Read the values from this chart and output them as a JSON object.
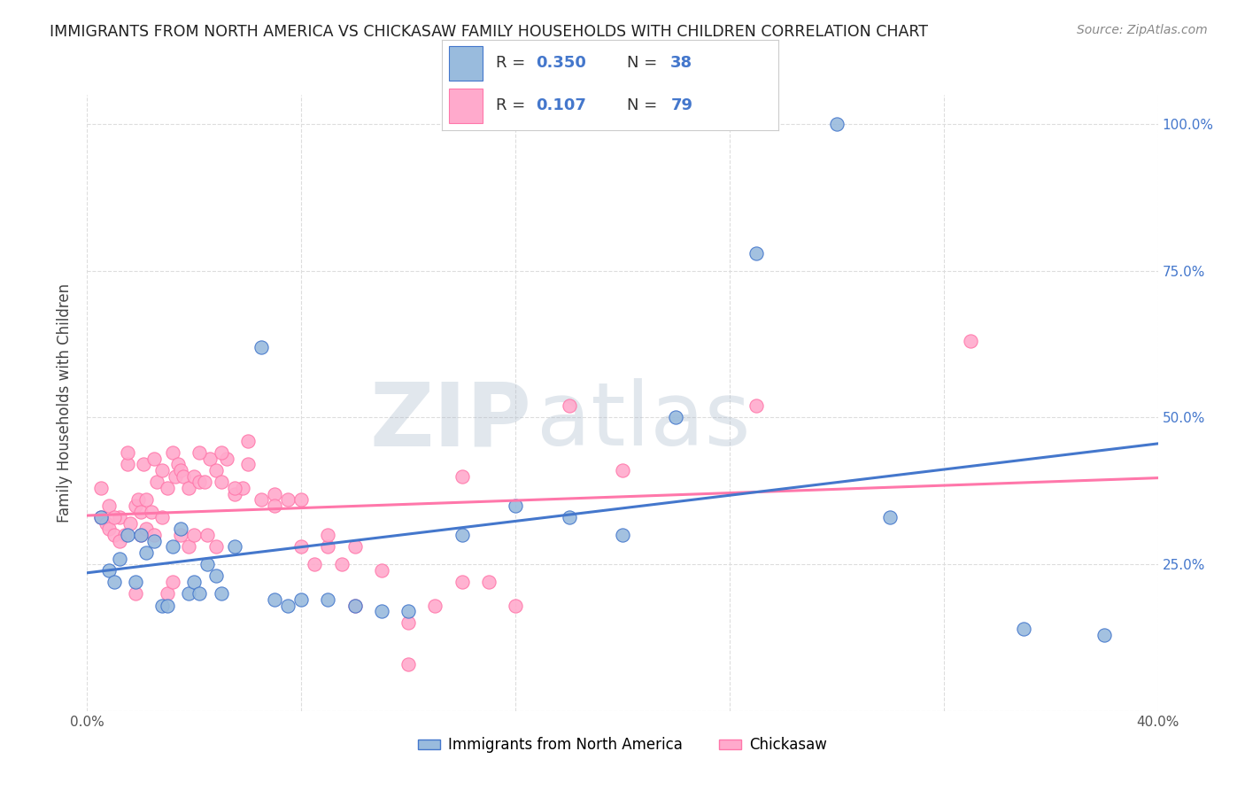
{
  "title": "IMMIGRANTS FROM NORTH AMERICA VS CHICKASAW FAMILY HOUSEHOLDS WITH CHILDREN CORRELATION CHART",
  "source": "Source: ZipAtlas.com",
  "ylabel": "Family Households with Children",
  "x_min": 0.0,
  "x_max": 0.4,
  "y_min": 0.0,
  "y_max": 1.05,
  "x_tick_positions": [
    0.0,
    0.08,
    0.16,
    0.24,
    0.32,
    0.4
  ],
  "x_tick_labels": [
    "0.0%",
    "",
    "",
    "",
    "",
    "40.0%"
  ],
  "y_tick_positions": [
    0.0,
    0.25,
    0.5,
    0.75,
    1.0
  ],
  "y_tick_labels": [
    "",
    "25.0%",
    "50.0%",
    "75.0%",
    "100.0%"
  ],
  "blue_R": "0.350",
  "blue_N": "38",
  "pink_R": "0.107",
  "pink_N": "79",
  "blue_scatter_color": "#99BBDD",
  "pink_scatter_color": "#FFAACC",
  "blue_line_color": "#4477CC",
  "pink_line_color": "#FF77AA",
  "legend_label_blue": "Immigrants from North America",
  "legend_label_pink": "Chickasaw",
  "blue_x": [
    0.005,
    0.008,
    0.01,
    0.012,
    0.015,
    0.018,
    0.02,
    0.022,
    0.025,
    0.028,
    0.03,
    0.032,
    0.035,
    0.038,
    0.04,
    0.042,
    0.045,
    0.048,
    0.05,
    0.055,
    0.065,
    0.07,
    0.075,
    0.08,
    0.09,
    0.1,
    0.11,
    0.12,
    0.14,
    0.16,
    0.18,
    0.2,
    0.22,
    0.25,
    0.28,
    0.3,
    0.35,
    0.38
  ],
  "blue_y": [
    0.33,
    0.24,
    0.22,
    0.26,
    0.3,
    0.22,
    0.3,
    0.27,
    0.29,
    0.18,
    0.18,
    0.28,
    0.31,
    0.2,
    0.22,
    0.2,
    0.25,
    0.23,
    0.2,
    0.28,
    0.62,
    0.19,
    0.18,
    0.19,
    0.19,
    0.18,
    0.17,
    0.17,
    0.3,
    0.35,
    0.33,
    0.3,
    0.5,
    0.78,
    1.0,
    0.33,
    0.14,
    0.13
  ],
  "pink_x": [
    0.005,
    0.007,
    0.008,
    0.01,
    0.012,
    0.014,
    0.015,
    0.016,
    0.018,
    0.019,
    0.02,
    0.021,
    0.022,
    0.024,
    0.025,
    0.026,
    0.028,
    0.03,
    0.032,
    0.033,
    0.034,
    0.035,
    0.036,
    0.038,
    0.04,
    0.042,
    0.044,
    0.046,
    0.048,
    0.05,
    0.052,
    0.055,
    0.058,
    0.06,
    0.065,
    0.07,
    0.075,
    0.08,
    0.085,
    0.09,
    0.095,
    0.1,
    0.11,
    0.12,
    0.13,
    0.14,
    0.15,
    0.16,
    0.18,
    0.2,
    0.005,
    0.008,
    0.01,
    0.012,
    0.015,
    0.018,
    0.02,
    0.022,
    0.025,
    0.028,
    0.03,
    0.032,
    0.035,
    0.038,
    0.04,
    0.042,
    0.045,
    0.048,
    0.05,
    0.055,
    0.06,
    0.07,
    0.08,
    0.09,
    0.1,
    0.12,
    0.14,
    0.25,
    0.33
  ],
  "pink_y": [
    0.33,
    0.32,
    0.31,
    0.3,
    0.33,
    0.3,
    0.42,
    0.32,
    0.35,
    0.36,
    0.34,
    0.42,
    0.36,
    0.34,
    0.43,
    0.39,
    0.41,
    0.38,
    0.44,
    0.4,
    0.42,
    0.41,
    0.4,
    0.38,
    0.4,
    0.39,
    0.39,
    0.43,
    0.41,
    0.39,
    0.43,
    0.37,
    0.38,
    0.42,
    0.36,
    0.37,
    0.36,
    0.36,
    0.25,
    0.28,
    0.25,
    0.28,
    0.24,
    0.15,
    0.18,
    0.22,
    0.22,
    0.18,
    0.52,
    0.41,
    0.38,
    0.35,
    0.33,
    0.29,
    0.44,
    0.2,
    0.3,
    0.31,
    0.3,
    0.33,
    0.2,
    0.22,
    0.3,
    0.28,
    0.3,
    0.44,
    0.3,
    0.28,
    0.44,
    0.38,
    0.46,
    0.35,
    0.28,
    0.3,
    0.18,
    0.08,
    0.4,
    0.52,
    0.63
  ],
  "background_color": "#FFFFFF",
  "grid_color": "#DDDDDD",
  "watermark_zip": "ZIP",
  "watermark_atlas": "atlas",
  "watermark_color_zip": "#AABBCC",
  "watermark_color_atlas": "#AABBCC",
  "watermark_alpha": 0.35,
  "label_color_blue": "#4477CC",
  "label_color_dark": "#333333"
}
